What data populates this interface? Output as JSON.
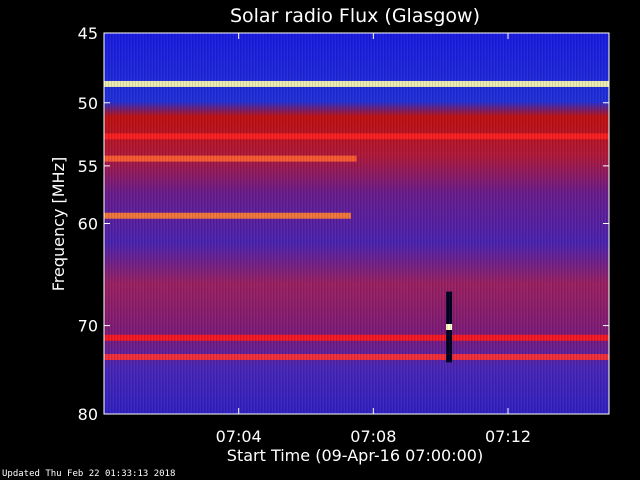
{
  "chart_data": {
    "type": "heatmap",
    "title": "Solar radio Flux (Glasgow)",
    "ylabel": "Frequency [MHz]",
    "xlabel": "Start Time (09-Apr-16 07:00:00)",
    "y_axis": {
      "range": [
        45,
        80
      ],
      "scale": "log",
      "inverted": true,
      "tick_labels": [
        "45",
        "50",
        "55",
        "60",
        "70",
        "80"
      ]
    },
    "x_axis": {
      "range": [
        "07:00:00",
        "07:15:00"
      ],
      "tick_labels": [
        "07:04",
        "07:08",
        "07:12"
      ]
    },
    "colormap": [
      "#000000",
      "#0000ff",
      "#ff0000",
      "#ffff00",
      "#ffffff"
    ],
    "features": [
      {
        "kind": "band",
        "freq": 48.6,
        "t_start": "07:00:00",
        "t_end": "07:15:00",
        "color": "#ffffaa"
      },
      {
        "kind": "band",
        "freq": 52.6,
        "t_start": "07:00:00",
        "t_end": "07:15:00",
        "color": "#ff2020"
      },
      {
        "kind": "band",
        "freq": 54.4,
        "t_start": "07:00:00",
        "t_end": "07:07:30",
        "color": "#ff6030"
      },
      {
        "kind": "band",
        "freq": 59.3,
        "t_start": "07:00:00",
        "t_end": "07:07:20",
        "color": "#ff8030"
      },
      {
        "kind": "band",
        "freq": 71.3,
        "t_start": "07:00:00",
        "t_end": "07:15:00",
        "color": "#ff1a1a"
      },
      {
        "kind": "band",
        "freq": 73.4,
        "t_start": "07:00:00",
        "t_end": "07:15:00",
        "color": "#ff3030"
      },
      {
        "kind": "burst",
        "t": "07:10:15",
        "freq_range": [
          66.5,
          74.0
        ]
      }
    ]
  },
  "footer": "Updated Thu Feb 22 01:33:13 2018"
}
